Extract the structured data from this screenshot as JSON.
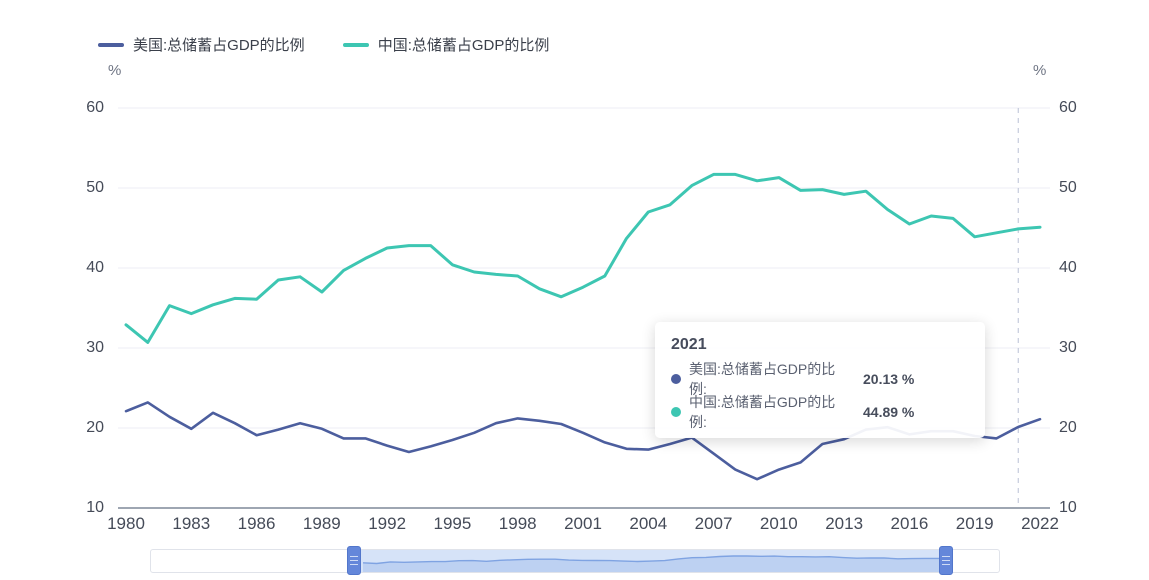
{
  "legend": {
    "items": [
      {
        "label": "美国:总储蓄占GDP的比例",
        "color": "#4c5e9e"
      },
      {
        "label": "中国:总储蓄占GDP的比例",
        "color": "#3dc6b2"
      }
    ]
  },
  "axes": {
    "y_unit_left": "%",
    "y_unit_right": "%"
  },
  "tooltip": {
    "title": "2021",
    "rows": [
      {
        "label": "美国:总储蓄占GDP的比例:",
        "value": "20.13 %",
        "color": "#4c5e9e"
      },
      {
        "label": "中国:总储蓄占GDP的比例:",
        "value": "44.89 %",
        "color": "#3dc6b2"
      }
    ]
  },
  "chart_data": {
    "type": "line",
    "title": "",
    "xlabel": "",
    "ylabel": "%",
    "ylim": [
      10,
      60
    ],
    "grid": "horizontal-only",
    "legend_position": "top-left",
    "marker_line_x": 2021,
    "x": [
      1980,
      1981,
      1982,
      1983,
      1984,
      1985,
      1986,
      1987,
      1988,
      1989,
      1990,
      1991,
      1992,
      1993,
      1994,
      1995,
      1996,
      1997,
      1998,
      1999,
      2000,
      2001,
      2002,
      2003,
      2004,
      2005,
      2006,
      2007,
      2008,
      2009,
      2010,
      2011,
      2012,
      2013,
      2014,
      2015,
      2016,
      2017,
      2018,
      2019,
      2020,
      2021,
      2022
    ],
    "x_tick_labels": [
      1980,
      1983,
      1986,
      1989,
      1992,
      1995,
      1998,
      2001,
      2004,
      2007,
      2010,
      2013,
      2016,
      2019,
      2022
    ],
    "y_ticks": [
      10,
      20,
      30,
      40,
      50,
      60
    ],
    "series": [
      {
        "name": "美国:总储蓄占GDP的比例",
        "color": "#4c5e9e",
        "values": [
          22.1,
          23.2,
          21.4,
          19.9,
          21.9,
          20.6,
          19.1,
          19.8,
          20.6,
          19.9,
          18.7,
          18.7,
          17.8,
          17.0,
          17.7,
          18.5,
          19.4,
          20.6,
          21.2,
          20.9,
          20.5,
          19.4,
          18.2,
          17.4,
          17.3,
          18.0,
          18.8,
          16.8,
          14.8,
          13.6,
          14.8,
          15.7,
          18.0,
          18.6,
          19.8,
          20.1,
          19.2,
          19.6,
          19.6,
          19.0,
          18.7,
          20.13,
          21.1
        ]
      },
      {
        "name": "中国:总储蓄占GDP的比例",
        "color": "#3dc6b2",
        "values": [
          32.9,
          30.7,
          35.3,
          34.3,
          35.4,
          36.2,
          36.1,
          38.5,
          38.9,
          37.0,
          39.7,
          41.2,
          42.5,
          42.8,
          42.8,
          40.4,
          39.5,
          39.2,
          39.0,
          37.4,
          36.4,
          37.6,
          39.0,
          43.7,
          47.0,
          47.9,
          50.3,
          51.7,
          51.7,
          50.9,
          51.3,
          49.7,
          49.8,
          49.2,
          49.6,
          47.3,
          45.5,
          46.5,
          46.2,
          43.9,
          44.4,
          44.89,
          45.1
        ]
      }
    ]
  }
}
